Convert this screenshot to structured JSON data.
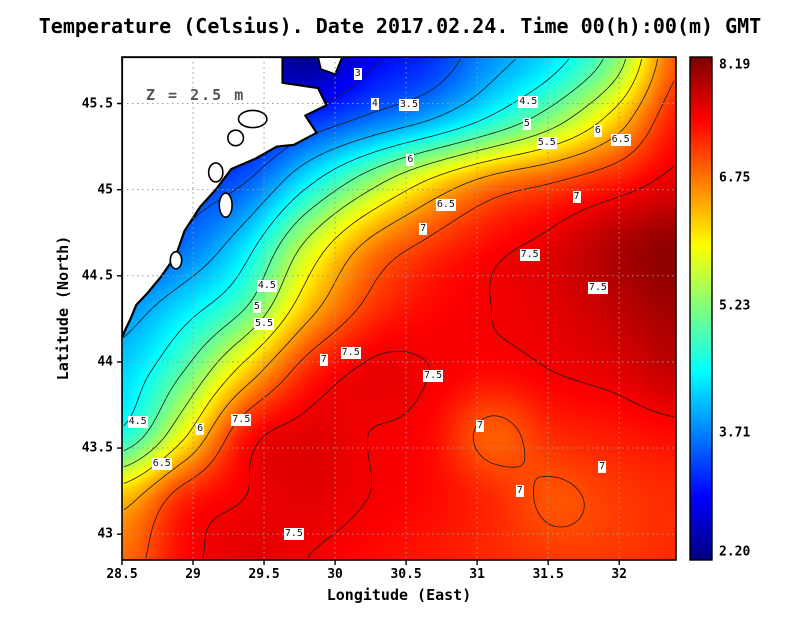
{
  "title": "Temperature (Celsius). Date 2017.02.24. Time 00(h):00(m) GMT",
  "annotation": "Z = 2.5 m",
  "xlabel": "Longitude (East)",
  "ylabel": "Latitude (North)",
  "chart_data": {
    "type": "heatmap",
    "variable": "Temperature",
    "units": "Celsius",
    "date": "2017.02.24",
    "time": "00(h):00(m) GMT",
    "depth_annotation": "Z = 2.5 m",
    "colormap": "jet",
    "lon_range": [
      28.5,
      32.4
    ],
    "lat_range": [
      42.85,
      45.77
    ],
    "x_ticks": [
      28.5,
      29,
      29.5,
      30,
      30.5,
      31,
      31.5,
      32
    ],
    "x_tick_labels": [
      "28.5",
      "29",
      "29.5",
      "30",
      "30.5",
      "31",
      "31.5",
      "32"
    ],
    "y_ticks": [
      43,
      43.5,
      44,
      44.5,
      45,
      45.5
    ],
    "y_tick_labels": [
      "43",
      "43.5",
      "44",
      "44.5",
      "45",
      "45.5"
    ],
    "colorbar": {
      "min": 2.2,
      "max": 8.19,
      "tick_labels": [
        "8.19",
        "6.75",
        "5.23",
        "3.71",
        "2.20"
      ]
    },
    "contour_levels": [
      3,
      3.5,
      4,
      4.5,
      5,
      5.5,
      6,
      6.5,
      7,
      7.5
    ],
    "grid_order": "rows north to south",
    "grid_lons": [
      28.5,
      28.93,
      29.37,
      29.8,
      30.23,
      30.67,
      31.1,
      31.53,
      31.97,
      32.4
    ],
    "grid_lats": [
      45.77,
      45.4,
      45.04,
      44.67,
      44.31,
      43.94,
      43.58,
      43.21,
      42.85
    ],
    "values": [
      [
        3.0,
        3.0,
        2.8,
        2.3,
        2.9,
        3.2,
        3.8,
        4.3,
        5.2,
        6.9
      ],
      [
        3.2,
        3.0,
        2.9,
        3.2,
        3.6,
        4.0,
        4.6,
        5.3,
        6.2,
        7.3
      ],
      [
        3.4,
        3.3,
        3.5,
        4.4,
        5.3,
        6.1,
        6.7,
        7.0,
        7.3,
        7.6
      ],
      [
        3.3,
        3.6,
        4.3,
        5.6,
        6.6,
        7.1,
        7.4,
        7.6,
        7.9,
        8.1
      ],
      [
        3.8,
        4.3,
        5.0,
        6.3,
        7.1,
        7.4,
        7.5,
        7.6,
        7.8,
        8.0
      ],
      [
        4.2,
        5.0,
        6.2,
        7.2,
        7.55,
        7.5,
        7.4,
        7.5,
        7.6,
        7.8
      ],
      [
        4.6,
        5.9,
        7.3,
        7.6,
        7.5,
        7.4,
        6.9,
        7.2,
        7.3,
        7.4
      ],
      [
        6.3,
        7.2,
        7.5,
        7.6,
        7.5,
        7.4,
        7.2,
        6.95,
        7.1,
        7.2
      ],
      [
        6.8,
        7.4,
        7.6,
        7.5,
        7.4,
        7.3,
        7.2,
        7.1,
        7.1,
        7.2
      ]
    ],
    "contour_labels": [
      {
        "text": "3",
        "lon": 30.16,
        "lat": 45.67
      },
      {
        "text": "4",
        "lon": 30.28,
        "lat": 45.5
      },
      {
        "text": "3.5",
        "lon": 30.52,
        "lat": 45.49
      },
      {
        "text": "4.5",
        "lon": 31.36,
        "lat": 45.51
      },
      {
        "text": "5",
        "lon": 31.35,
        "lat": 45.38
      },
      {
        "text": "5.5",
        "lon": 31.49,
        "lat": 45.27
      },
      {
        "text": "6",
        "lon": 31.85,
        "lat": 45.34
      },
      {
        "text": "6.5",
        "lon": 32.01,
        "lat": 45.29
      },
      {
        "text": "6",
        "lon": 30.53,
        "lat": 45.17
      },
      {
        "text": "6.5",
        "lon": 30.78,
        "lat": 44.91
      },
      {
        "text": "7",
        "lon": 30.62,
        "lat": 44.77
      },
      {
        "text": "7",
        "lon": 31.7,
        "lat": 44.96
      },
      {
        "text": "7.5",
        "lon": 31.37,
        "lat": 44.62
      },
      {
        "text": "7.5",
        "lon": 31.85,
        "lat": 44.43
      },
      {
        "text": "4.5",
        "lon": 29.52,
        "lat": 44.44
      },
      {
        "text": "5",
        "lon": 29.45,
        "lat": 44.32
      },
      {
        "text": "5.5",
        "lon": 29.5,
        "lat": 44.22
      },
      {
        "text": "7",
        "lon": 29.92,
        "lat": 44.01
      },
      {
        "text": "7.5",
        "lon": 30.11,
        "lat": 44.05
      },
      {
        "text": "7.5",
        "lon": 30.69,
        "lat": 43.92
      },
      {
        "text": "4.5",
        "lon": 28.61,
        "lat": 43.65
      },
      {
        "text": "6",
        "lon": 29.05,
        "lat": 43.61
      },
      {
        "text": "7.5",
        "lon": 29.34,
        "lat": 43.66
      },
      {
        "text": "7",
        "lon": 31.02,
        "lat": 43.63
      },
      {
        "text": "6.5",
        "lon": 28.78,
        "lat": 43.41
      },
      {
        "text": "7",
        "lon": 31.88,
        "lat": 43.39
      },
      {
        "text": "7",
        "lon": 31.3,
        "lat": 43.25
      },
      {
        "text": "7.5",
        "lon": 29.71,
        "lat": 43.0
      }
    ],
    "land_polygon": [
      [
        28.5,
        45.77
      ],
      [
        29.63,
        45.77
      ],
      [
        29.63,
        45.62
      ],
      [
        29.88,
        45.59
      ],
      [
        29.94,
        45.49
      ],
      [
        29.79,
        45.43
      ],
      [
        29.87,
        45.33
      ],
      [
        29.71,
        45.26
      ],
      [
        29.59,
        45.25
      ],
      [
        29.44,
        45.18
      ],
      [
        29.27,
        45.12
      ],
      [
        29.16,
        45.0
      ],
      [
        29.05,
        44.9
      ],
      [
        28.94,
        44.76
      ],
      [
        28.88,
        44.62
      ],
      [
        28.78,
        44.5
      ],
      [
        28.68,
        44.4
      ],
      [
        28.6,
        44.33
      ],
      [
        28.56,
        44.25
      ],
      [
        28.52,
        44.18
      ],
      [
        28.5,
        44.14
      ]
    ],
    "islet_polygon": [
      [
        29.88,
        45.77
      ],
      [
        30.05,
        45.77
      ],
      [
        30.0,
        45.67
      ],
      [
        29.9,
        45.7
      ]
    ],
    "lakes": [
      [
        29.42,
        45.41,
        0.1,
        0.05
      ],
      [
        29.3,
        45.3,
        0.055,
        0.045
      ],
      [
        29.16,
        45.1,
        0.05,
        0.055
      ],
      [
        29.23,
        44.91,
        0.045,
        0.07
      ],
      [
        28.88,
        44.59,
        0.04,
        0.05
      ]
    ]
  }
}
